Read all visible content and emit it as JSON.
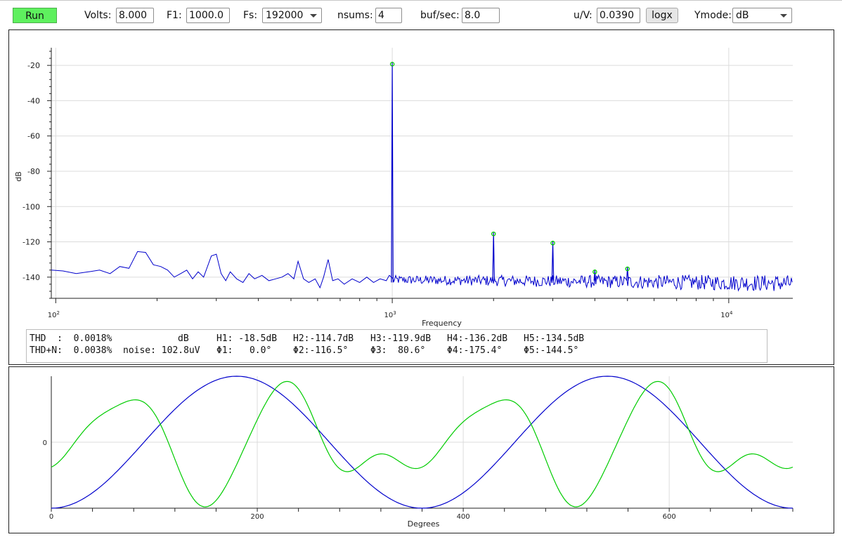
{
  "toolbar": {
    "run_label": "Run",
    "volts_label": "Volts:",
    "volts_value": "8.000",
    "f1_label": "F1:",
    "f1_value": "1000.0",
    "fs_label": "Fs:",
    "fs_value": "192000",
    "nsums_label": "nsums:",
    "nsums_value": "4",
    "bufsec_label": "buf/sec:",
    "bufsec_value": "8.0",
    "uv_label": "u/V:",
    "uv_value": "0.0390",
    "logx_label": "logx",
    "ymode_label": "Ymode:",
    "ymode_value": "dB"
  },
  "stats": {
    "row1": [
      "THD  :  0.0018%",
      "dB",
      "H1: -18.5dB",
      "H2:-114.7dB",
      "H3:-119.9dB",
      "H4:-136.2dB",
      "H5:-134.5dB"
    ],
    "row2": [
      "THD+N:  0.0038%",
      "noise: 102.8uV",
      "Φ1:   0.0°",
      "Φ2:-116.5°",
      "Φ3:  80.6°",
      "Φ4:-175.4°",
      "Φ5:-144.5°"
    ]
  },
  "chart_data": [
    {
      "type": "line",
      "title": "",
      "xlabel": "Frequency",
      "ylabel": "dB",
      "xscale": "log",
      "xlim": [
        97,
        15500
      ],
      "ylim": [
        -152,
        -10
      ],
      "xticks": [
        100,
        1000,
        10000
      ],
      "xtick_labels": [
        {
          "base": "10",
          "exp": "2"
        },
        {
          "base": "10",
          "exp": "3"
        },
        {
          "base": "10",
          "exp": "4"
        }
      ],
      "yticks": [
        -20,
        -40,
        -60,
        -80,
        -100,
        -120,
        -140
      ],
      "grid": true,
      "series_color": "#0000cc",
      "marker_color": "#00cc00",
      "noise_floor": [
        [
          97,
          -136
        ],
        [
          105,
          -136.5
        ],
        [
          115,
          -138
        ],
        [
          125,
          -137
        ],
        [
          135,
          -136
        ],
        [
          145,
          -138
        ],
        [
          155,
          -134
        ],
        [
          165,
          -135
        ],
        [
          175,
          -125.5
        ],
        [
          185,
          -126
        ],
        [
          195,
          -133
        ],
        [
          205,
          -134
        ],
        [
          215,
          -136
        ],
        [
          225,
          -140
        ],
        [
          235,
          -138
        ],
        [
          245,
          -136
        ],
        [
          255,
          -141
        ],
        [
          265,
          -137
        ],
        [
          275,
          -140
        ],
        [
          290,
          -128
        ],
        [
          300,
          -127
        ],
        [
          310,
          -138
        ],
        [
          320,
          -142
        ],
        [
          330,
          -137
        ],
        [
          345,
          -141
        ],
        [
          360,
          -143
        ],
        [
          375,
          -138
        ],
        [
          390,
          -141
        ],
        [
          410,
          -139
        ],
        [
          430,
          -142
        ],
        [
          450,
          -141
        ],
        [
          470,
          -140
        ],
        [
          490,
          -138
        ],
        [
          510,
          -141
        ],
        [
          525,
          -131
        ],
        [
          545,
          -141
        ],
        [
          565,
          -143
        ],
        [
          590,
          -141
        ],
        [
          610,
          -146
        ],
        [
          625,
          -140
        ],
        [
          645,
          -130
        ],
        [
          665,
          -142
        ],
        [
          690,
          -141
        ],
        [
          720,
          -144
        ],
        [
          760,
          -141
        ],
        [
          800,
          -143
        ],
        [
          840,
          -140
        ],
        [
          880,
          -143
        ],
        [
          920,
          -141
        ],
        [
          960,
          -142
        ],
        [
          980,
          -139
        ]
      ],
      "peaks": [
        {
          "f": 1000,
          "db": -18.5
        },
        {
          "f": 2000,
          "db": -114.7
        },
        {
          "f": 3000,
          "db": -119.9
        },
        {
          "f": 4000,
          "db": -136.2
        },
        {
          "f": 5000,
          "db": -134.5
        }
      ],
      "noise_band": {
        "start": 1000,
        "end": 15500,
        "mean_start": -141.5,
        "mean_end": -143.5,
        "spread": 4
      }
    },
    {
      "type": "line",
      "title": "",
      "xlabel": "Degrees",
      "ylabel": "",
      "xlim": [
        0,
        720
      ],
      "ylim": [
        -1,
        1
      ],
      "xticks": [
        0,
        200,
        400,
        600
      ],
      "yticks": [
        0
      ],
      "grid": true,
      "series": [
        {
          "color": "#0000cc",
          "kind": "fundamental",
          "period_deg": 360,
          "phase_deg": 90
        },
        {
          "color": "#00cc00",
          "kind": "residual",
          "harmonics": [
            {
              "n": 2,
              "amp": 1.0,
              "phase_deg": -116.5
            },
            {
              "n": 3,
              "amp": 0.55,
              "phase_deg": 80.6
            },
            {
              "n": 4,
              "amp": 0.12,
              "phase_deg": -175.4
            },
            {
              "n": 5,
              "amp": 0.15,
              "phase_deg": -144.5
            }
          ]
        }
      ]
    }
  ]
}
